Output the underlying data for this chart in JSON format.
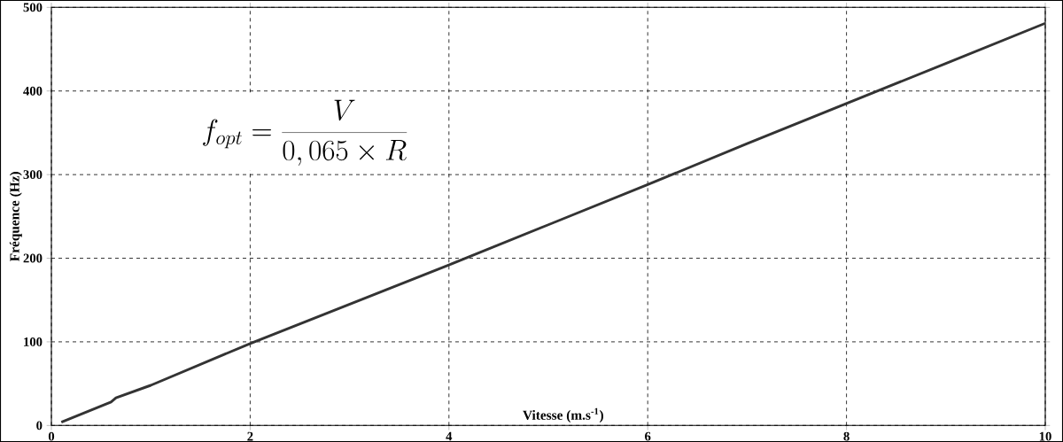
{
  "chart_data": {
    "type": "line",
    "xlabel": "Vitesse (m.s$^{-1}$)",
    "ylabel": "Fréquence (Hz)",
    "x": [
      0.1,
      0.6,
      0.65,
      1,
      2,
      3,
      4,
      5,
      6,
      7,
      8,
      9,
      10
    ],
    "series": [
      {
        "color": "#333333",
        "values": [
          4,
          28,
          33,
          48,
          98,
          145,
          192,
          240,
          288,
          337,
          385,
          433,
          481
        ]
      }
    ],
    "xlim": [
      0,
      10
    ],
    "ylim": [
      0,
      500
    ],
    "xticks": [
      0,
      2,
      4,
      6,
      8,
      10
    ],
    "yticks": [
      0,
      100,
      200,
      300,
      400,
      500
    ],
    "grid": true,
    "line_style": "solid",
    "marker": "none",
    "annotations": [
      "f_{opt} = \\frac{V}{0,065\\times R}"
    ]
  }
}
